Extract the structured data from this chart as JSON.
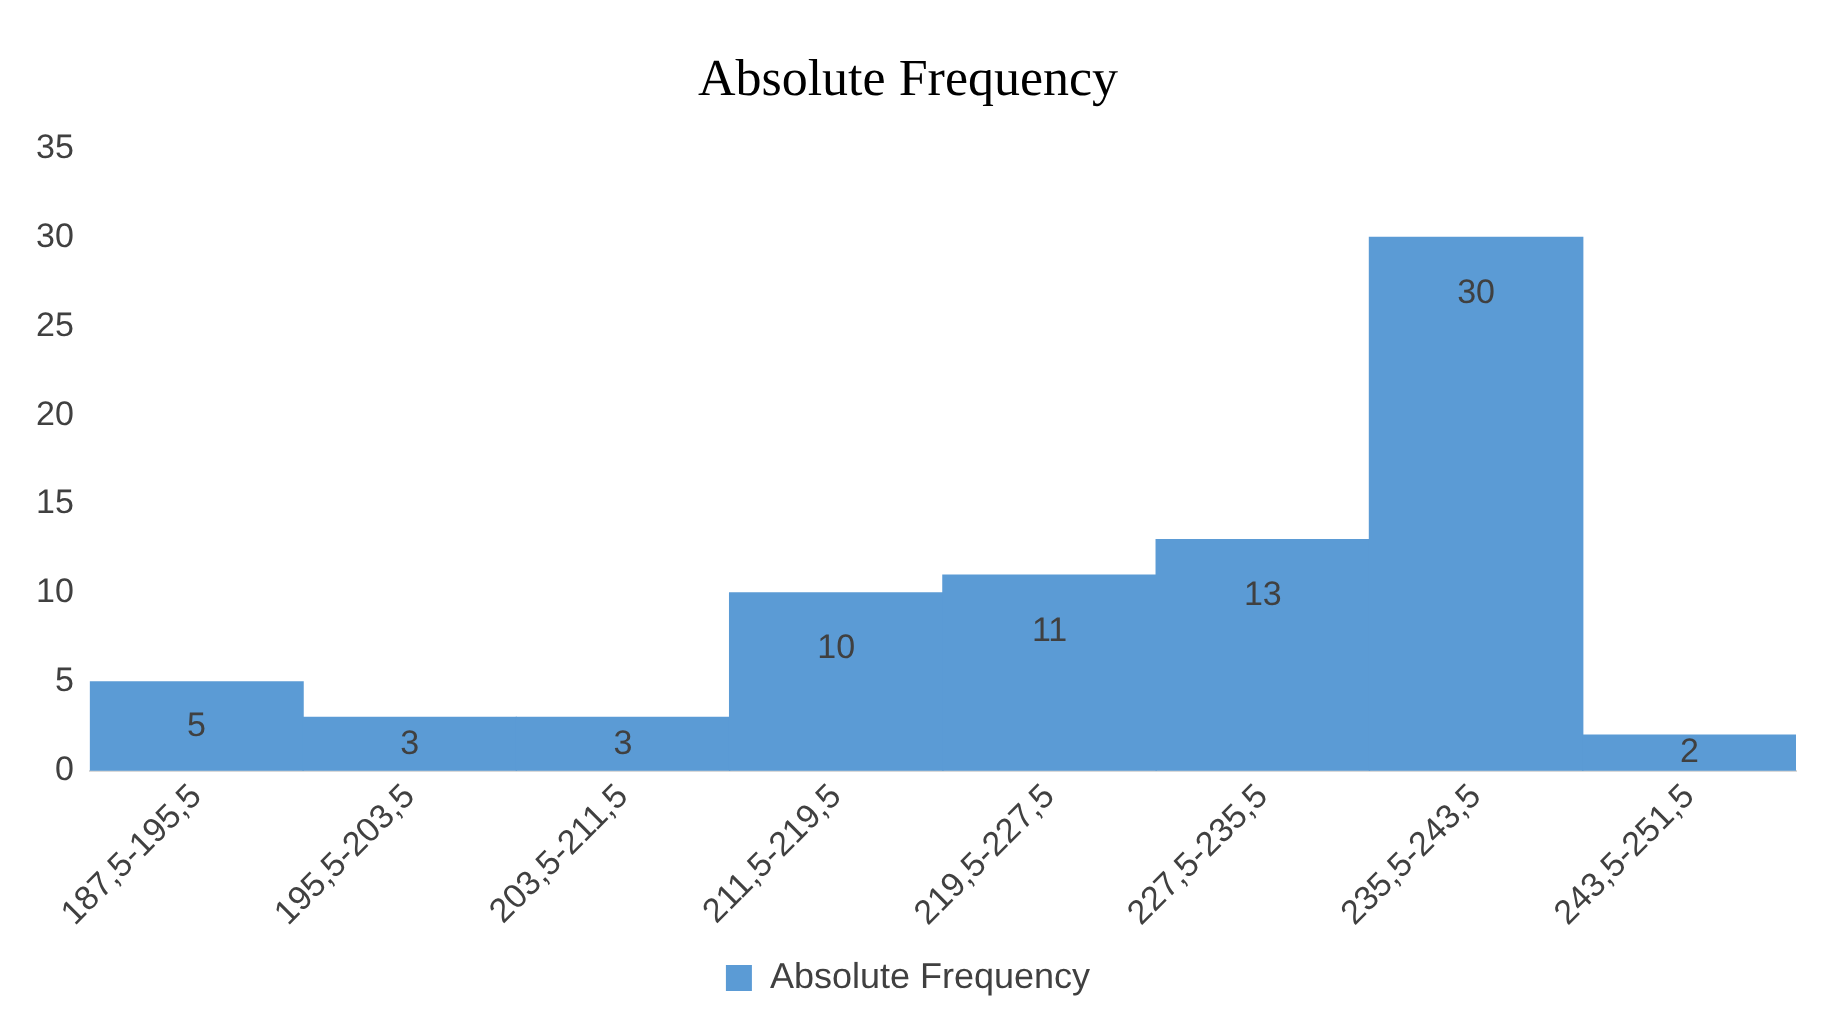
{
  "chart_data": {
    "type": "bar",
    "title": "Absolute Frequency",
    "categories": [
      "187,5-195,5",
      "195,5-203,5",
      "203,5-211,5",
      "211,5-219,5",
      "219,5-227,5",
      "227,5-235,5",
      "235,5-243,5",
      "243,5-251,5"
    ],
    "series": [
      {
        "name": "Absolute Frequency",
        "color": "#5b9bd5",
        "values": [
          5,
          3,
          3,
          10,
          11,
          13,
          30,
          2
        ]
      }
    ],
    "ylim": [
      0,
      35
    ],
    "yticks": [
      0,
      5,
      10,
      15,
      20,
      25,
      30,
      35
    ],
    "grid": false,
    "legend": "bottom",
    "data_labels": true
  }
}
